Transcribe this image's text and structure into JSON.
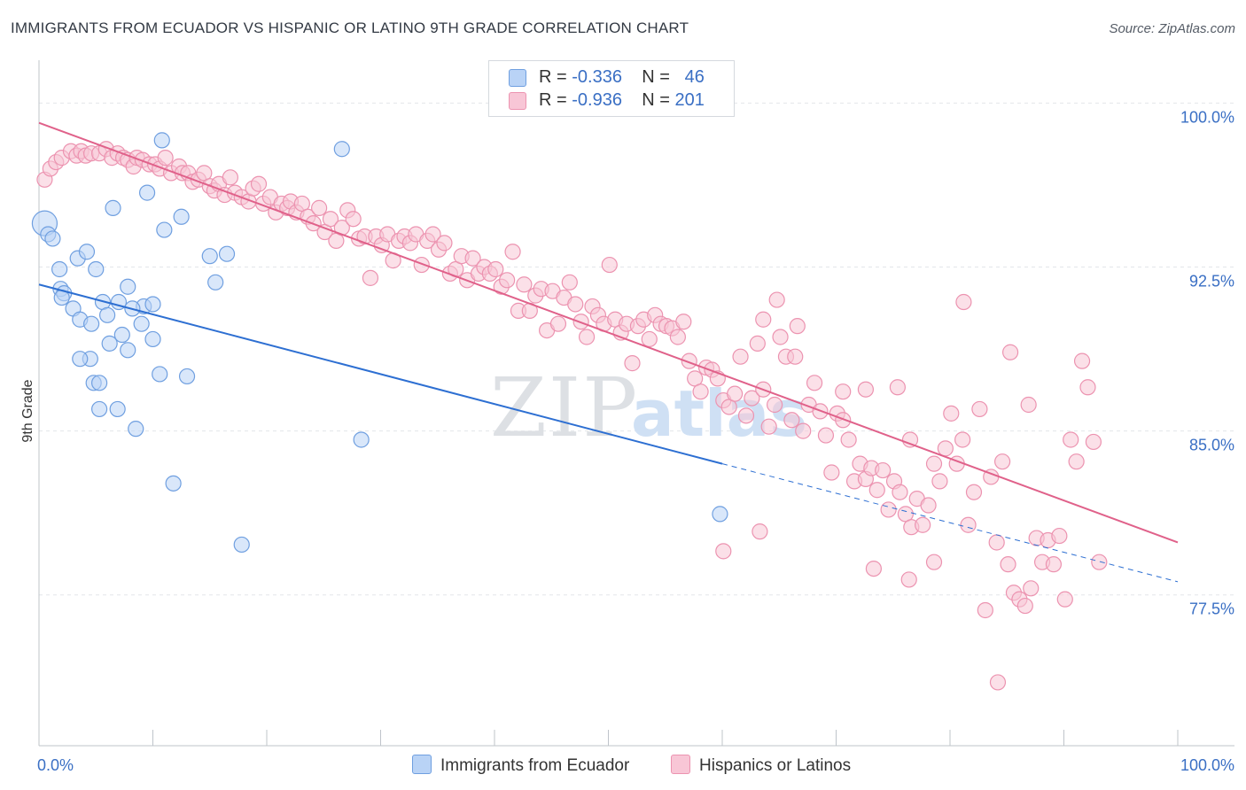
{
  "header": {
    "title": "IMMIGRANTS FROM ECUADOR VS HISPANIC OR LATINO 9TH GRADE CORRELATION CHART",
    "source": "Source: ZipAtlas.com"
  },
  "watermark": {
    "zip": "ZIP",
    "atlas": "atlas"
  },
  "legend": {
    "rows": [
      {
        "r_label": "R = ",
        "r_value": "-0.336",
        "n_label": "N = ",
        "n_value": "46"
      },
      {
        "r_label": "R = ",
        "r_value": "-0.936",
        "n_label": "N = ",
        "n_value": "201"
      }
    ]
  },
  "chart_data": {
    "type": "scatter",
    "title": "IMMIGRANTS FROM ECUADOR VS HISPANIC OR LATINO 9TH GRADE CORRELATION CHART",
    "xlabel": "",
    "ylabel": "9th Grade",
    "xlim": [
      0,
      100
    ],
    "ylim": [
      70.6,
      101.8
    ],
    "x_tick_labels": [
      "0.0%",
      "100.0%"
    ],
    "y_ticks": [
      {
        "value": 100.0,
        "label": "100.0%"
      },
      {
        "value": 92.5,
        "label": "92.5%"
      },
      {
        "value": 85.0,
        "label": "85.0%"
      },
      {
        "value": 77.5,
        "label": "77.5%"
      }
    ],
    "grid": true,
    "legend_placement": "top-center",
    "colors": {
      "ecuador_fill": "#b9d3f6",
      "ecuador_stroke": "#6f9fe0",
      "ecuador_line": "#2d6fd2",
      "hispanic_fill": "#f8c6d6",
      "hispanic_stroke": "#ec93b0",
      "hispanic_line": "#e0618a"
    },
    "series": [
      {
        "name": "Immigrants from Ecuador",
        "trend": {
          "x1": 0,
          "y1": 91.7,
          "x2": 60,
          "y2": 83.5,
          "dashed_to_x": 100,
          "dashed_to_y": 78.1
        },
        "points": [
          [
            0.5,
            94.5
          ],
          [
            0.8,
            94.0
          ],
          [
            1.2,
            93.8
          ],
          [
            1.8,
            92.4
          ],
          [
            3.4,
            92.9
          ],
          [
            4.2,
            93.2
          ],
          [
            5.0,
            92.4
          ],
          [
            1.9,
            91.5
          ],
          [
            2.2,
            91.3
          ],
          [
            2.0,
            91.1
          ],
          [
            3.0,
            90.6
          ],
          [
            3.6,
            90.1
          ],
          [
            4.6,
            89.9
          ],
          [
            5.6,
            90.9
          ],
          [
            6.0,
            90.3
          ],
          [
            7.0,
            90.9
          ],
          [
            7.8,
            91.6
          ],
          [
            9.2,
            90.7
          ],
          [
            10.0,
            90.8
          ],
          [
            8.2,
            90.6
          ],
          [
            9.0,
            89.9
          ],
          [
            6.2,
            89.0
          ],
          [
            7.3,
            89.4
          ],
          [
            7.8,
            88.7
          ],
          [
            10.0,
            89.2
          ],
          [
            4.5,
            88.3
          ],
          [
            3.6,
            88.3
          ],
          [
            4.8,
            87.2
          ],
          [
            5.3,
            87.2
          ],
          [
            5.3,
            86.0
          ],
          [
            6.9,
            86.0
          ],
          [
            10.6,
            87.6
          ],
          [
            13.0,
            87.5
          ],
          [
            8.5,
            85.1
          ],
          [
            9.5,
            95.9
          ],
          [
            11.0,
            94.2
          ],
          [
            12.5,
            94.8
          ],
          [
            10.8,
            98.3
          ],
          [
            6.5,
            95.2
          ],
          [
            15.0,
            93.0
          ],
          [
            16.5,
            93.1
          ],
          [
            15.5,
            91.8
          ],
          [
            11.8,
            82.6
          ],
          [
            17.8,
            79.8
          ],
          [
            26.6,
            97.9
          ],
          [
            28.3,
            84.6
          ],
          [
            59.8,
            81.2
          ]
        ]
      },
      {
        "name": "Hispanics or Latinos",
        "trend": {
          "x1": 0,
          "y1": 99.1,
          "x2": 100,
          "y2": 79.9
        },
        "points": [
          [
            0.5,
            96.5
          ],
          [
            1.0,
            97.0
          ],
          [
            1.5,
            97.3
          ],
          [
            2.0,
            97.5
          ],
          [
            2.8,
            97.8
          ],
          [
            3.3,
            97.6
          ],
          [
            3.7,
            97.8
          ],
          [
            4.1,
            97.6
          ],
          [
            4.6,
            97.7
          ],
          [
            5.3,
            97.7
          ],
          [
            5.9,
            97.9
          ],
          [
            6.4,
            97.5
          ],
          [
            6.9,
            97.7
          ],
          [
            7.4,
            97.5
          ],
          [
            7.8,
            97.4
          ],
          [
            8.3,
            97.1
          ],
          [
            8.6,
            97.5
          ],
          [
            9.1,
            97.4
          ],
          [
            9.7,
            97.2
          ],
          [
            10.2,
            97.2
          ],
          [
            10.6,
            97.0
          ],
          [
            11.1,
            97.5
          ],
          [
            11.6,
            96.8
          ],
          [
            12.3,
            97.1
          ],
          [
            12.6,
            96.8
          ],
          [
            13.1,
            96.8
          ],
          [
            13.5,
            96.4
          ],
          [
            14.0,
            96.5
          ],
          [
            14.5,
            96.8
          ],
          [
            15.0,
            96.2
          ],
          [
            15.4,
            96.0
          ],
          [
            15.8,
            96.3
          ],
          [
            16.3,
            95.8
          ],
          [
            16.8,
            96.6
          ],
          [
            17.2,
            95.9
          ],
          [
            17.8,
            95.7
          ],
          [
            18.4,
            95.5
          ],
          [
            18.8,
            96.1
          ],
          [
            19.3,
            96.3
          ],
          [
            19.7,
            95.4
          ],
          [
            20.3,
            95.7
          ],
          [
            20.8,
            95.0
          ],
          [
            21.3,
            95.4
          ],
          [
            21.8,
            95.2
          ],
          [
            22.1,
            95.5
          ],
          [
            22.6,
            95.0
          ],
          [
            23.1,
            95.4
          ],
          [
            23.6,
            94.8
          ],
          [
            24.1,
            94.5
          ],
          [
            24.6,
            95.2
          ],
          [
            25.1,
            94.1
          ],
          [
            25.6,
            94.7
          ],
          [
            26.1,
            93.7
          ],
          [
            26.6,
            94.3
          ],
          [
            27.1,
            95.1
          ],
          [
            27.6,
            94.7
          ],
          [
            28.1,
            93.8
          ],
          [
            28.6,
            93.9
          ],
          [
            29.1,
            92.0
          ],
          [
            29.6,
            93.9
          ],
          [
            30.1,
            93.5
          ],
          [
            30.6,
            94.0
          ],
          [
            31.1,
            92.8
          ],
          [
            31.6,
            93.7
          ],
          [
            32.1,
            93.9
          ],
          [
            32.6,
            93.6
          ],
          [
            33.1,
            94.0
          ],
          [
            33.6,
            92.6
          ],
          [
            34.1,
            93.7
          ],
          [
            34.6,
            94.0
          ],
          [
            35.1,
            93.3
          ],
          [
            35.6,
            93.6
          ],
          [
            36.1,
            92.2
          ],
          [
            36.6,
            92.4
          ],
          [
            37.1,
            93.0
          ],
          [
            37.6,
            91.9
          ],
          [
            38.1,
            92.9
          ],
          [
            38.6,
            92.2
          ],
          [
            39.1,
            92.5
          ],
          [
            39.6,
            92.2
          ],
          [
            40.1,
            92.4
          ],
          [
            40.6,
            91.6
          ],
          [
            41.1,
            91.9
          ],
          [
            41.6,
            93.2
          ],
          [
            42.1,
            90.5
          ],
          [
            42.6,
            91.7
          ],
          [
            43.1,
            90.5
          ],
          [
            43.6,
            91.2
          ],
          [
            44.1,
            91.5
          ],
          [
            44.6,
            89.6
          ],
          [
            45.1,
            91.4
          ],
          [
            45.6,
            89.9
          ],
          [
            46.1,
            91.1
          ],
          [
            46.6,
            91.8
          ],
          [
            47.1,
            90.8
          ],
          [
            47.6,
            90.0
          ],
          [
            48.1,
            89.3
          ],
          [
            48.6,
            90.7
          ],
          [
            49.1,
            90.3
          ],
          [
            49.6,
            89.9
          ],
          [
            50.1,
            92.6
          ],
          [
            50.6,
            90.1
          ],
          [
            51.1,
            89.5
          ],
          [
            51.6,
            89.9
          ],
          [
            52.1,
            88.1
          ],
          [
            52.6,
            89.8
          ],
          [
            53.1,
            90.1
          ],
          [
            53.6,
            89.2
          ],
          [
            54.1,
            90.3
          ],
          [
            54.6,
            89.9
          ],
          [
            55.1,
            89.8
          ],
          [
            55.6,
            89.7
          ],
          [
            56.1,
            89.3
          ],
          [
            56.6,
            90.0
          ],
          [
            57.1,
            88.2
          ],
          [
            57.6,
            87.4
          ],
          [
            58.1,
            86.8
          ],
          [
            58.6,
            87.9
          ],
          [
            59.1,
            87.8
          ],
          [
            59.6,
            87.4
          ],
          [
            60.1,
            86.4
          ],
          [
            60.6,
            86.1
          ],
          [
            61.1,
            86.7
          ],
          [
            61.6,
            88.4
          ],
          [
            62.1,
            85.7
          ],
          [
            62.6,
            86.5
          ],
          [
            63.1,
            89.0
          ],
          [
            63.6,
            86.9
          ],
          [
            64.1,
            85.2
          ],
          [
            64.6,
            86.2
          ],
          [
            65.1,
            89.3
          ],
          [
            65.6,
            88.4
          ],
          [
            66.1,
            85.5
          ],
          [
            66.6,
            89.8
          ],
          [
            67.1,
            85.0
          ],
          [
            67.6,
            86.2
          ],
          [
            68.1,
            87.2
          ],
          [
            68.6,
            85.9
          ],
          [
            69.1,
            84.8
          ],
          [
            69.6,
            83.1
          ],
          [
            70.1,
            85.8
          ],
          [
            70.6,
            85.5
          ],
          [
            71.1,
            84.6
          ],
          [
            71.6,
            82.7
          ],
          [
            72.1,
            83.5
          ],
          [
            72.6,
            82.8
          ],
          [
            73.1,
            83.3
          ],
          [
            73.6,
            82.3
          ],
          [
            74.1,
            83.2
          ],
          [
            74.6,
            81.4
          ],
          [
            75.1,
            82.7
          ],
          [
            75.6,
            82.2
          ],
          [
            76.1,
            81.2
          ],
          [
            76.6,
            80.6
          ],
          [
            77.1,
            81.9
          ],
          [
            77.6,
            80.7
          ],
          [
            78.1,
            81.6
          ],
          [
            78.6,
            83.5
          ],
          [
            79.1,
            82.7
          ],
          [
            79.6,
            84.2
          ],
          [
            80.1,
            85.8
          ],
          [
            80.6,
            83.5
          ],
          [
            81.1,
            84.6
          ],
          [
            81.6,
            80.7
          ],
          [
            82.1,
            82.2
          ],
          [
            82.6,
            86.0
          ],
          [
            83.1,
            76.8
          ],
          [
            83.6,
            82.9
          ],
          [
            84.1,
            79.9
          ],
          [
            84.6,
            83.6
          ],
          [
            85.1,
            78.9
          ],
          [
            85.6,
            77.6
          ],
          [
            86.1,
            77.3
          ],
          [
            86.6,
            77.0
          ],
          [
            87.1,
            77.8
          ],
          [
            87.6,
            80.1
          ],
          [
            88.1,
            79.0
          ],
          [
            88.6,
            80.0
          ],
          [
            89.1,
            78.9
          ],
          [
            89.6,
            80.2
          ],
          [
            90.1,
            77.3
          ],
          [
            90.6,
            84.6
          ],
          [
            91.1,
            83.6
          ],
          [
            91.6,
            88.2
          ],
          [
            92.1,
            87.0
          ],
          [
            92.6,
            84.5
          ],
          [
            93.1,
            79.0
          ],
          [
            63.6,
            90.1
          ],
          [
            64.8,
            91.0
          ],
          [
            66.4,
            88.4
          ],
          [
            70.6,
            86.8
          ],
          [
            72.6,
            86.9
          ],
          [
            75.4,
            87.0
          ],
          [
            76.5,
            84.6
          ],
          [
            78.6,
            79.0
          ],
          [
            81.2,
            90.9
          ],
          [
            85.3,
            88.6
          ],
          [
            86.9,
            86.2
          ],
          [
            73.3,
            78.7
          ],
          [
            76.4,
            78.2
          ],
          [
            84.2,
            73.5
          ],
          [
            60.1,
            79.5
          ],
          [
            63.3,
            80.4
          ]
        ]
      }
    ]
  },
  "bottom_legend": [
    {
      "label": "Immigrants from Ecuador"
    },
    {
      "label": "Hispanics or Latinos"
    }
  ]
}
